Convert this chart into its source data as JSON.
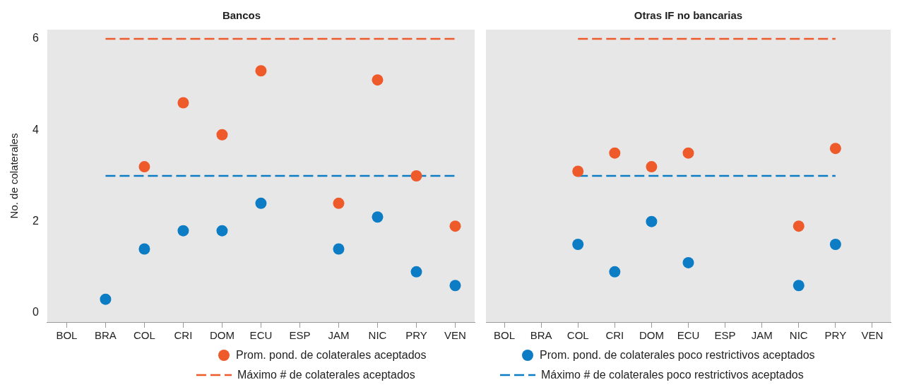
{
  "chart_data": [
    {
      "type": "scatter",
      "title": "Bancos",
      "ylabel": "No. de colaterales",
      "categories": [
        "BOL",
        "BRA",
        "COL",
        "CRI",
        "DOM",
        "ECU",
        "ESP",
        "JAM",
        "NIC",
        "PRY",
        "VEN"
      ],
      "series": [
        {
          "name": "Prom. pond. de colaterales aceptados",
          "marker": "circle",
          "color": "#ee5a2a",
          "values": [
            null,
            null,
            3.2,
            4.6,
            3.9,
            5.3,
            null,
            2.4,
            5.1,
            3.0,
            1.9
          ]
        },
        {
          "name": "Prom. pond. de colaterales poco restrictivos aceptados",
          "marker": "circle",
          "color": "#0c7cc4",
          "values": [
            null,
            0.3,
            1.4,
            1.8,
            1.8,
            2.4,
            null,
            1.4,
            2.1,
            0.9,
            0.6
          ]
        },
        {
          "name": "Máximo # de colaterales aceptados",
          "type": "line",
          "marker": "none",
          "line_style": "dashed",
          "color": "#ee5a2a",
          "values": [
            null,
            6,
            6,
            6,
            6,
            6,
            6,
            6,
            6,
            6,
            6
          ]
        },
        {
          "name": "Máximo # de colaterales poco restrictivos aceptados",
          "type": "line",
          "marker": "none",
          "line_style": "dashed",
          "color": "#0c7cc4",
          "values": [
            null,
            3,
            3,
            3,
            3,
            3,
            3,
            3,
            3,
            3,
            3
          ]
        }
      ],
      "ylim": [
        -0.2,
        6.2
      ],
      "yticks": [
        0,
        2,
        4,
        6
      ],
      "grid": false,
      "legend": "bottom"
    },
    {
      "type": "scatter",
      "title": "Otras IF no bancarias",
      "categories": [
        "BOL",
        "BRA",
        "COL",
        "CRI",
        "DOM",
        "ECU",
        "ESP",
        "JAM",
        "NIC",
        "PRY",
        "VEN"
      ],
      "series": [
        {
          "marker": "circle",
          "color": "#ee5a2a",
          "values": [
            null,
            null,
            3.1,
            3.5,
            3.2,
            3.5,
            null,
            null,
            1.9,
            3.6,
            null
          ]
        },
        {
          "marker": "circle",
          "color": "#0c7cc4",
          "values": [
            null,
            null,
            1.5,
            0.9,
            2.0,
            1.1,
            null,
            null,
            0.6,
            1.5,
            null
          ]
        },
        {
          "type": "line",
          "marker": "none",
          "line_style": "dashed",
          "color": "#ee5a2a",
          "values": [
            null,
            null,
            6,
            6,
            6,
            6,
            6,
            6,
            6,
            6,
            null
          ]
        },
        {
          "type": "line",
          "marker": "none",
          "line_style": "dashed",
          "color": "#0c7cc4",
          "values": [
            null,
            null,
            3,
            3,
            3,
            3,
            3,
            3,
            3,
            3,
            null
          ]
        }
      ],
      "ylim": [
        -0.2,
        6.2
      ],
      "yticks": [
        0,
        2,
        4,
        6
      ],
      "grid": false,
      "tick_labels": "x"
    }
  ]
}
